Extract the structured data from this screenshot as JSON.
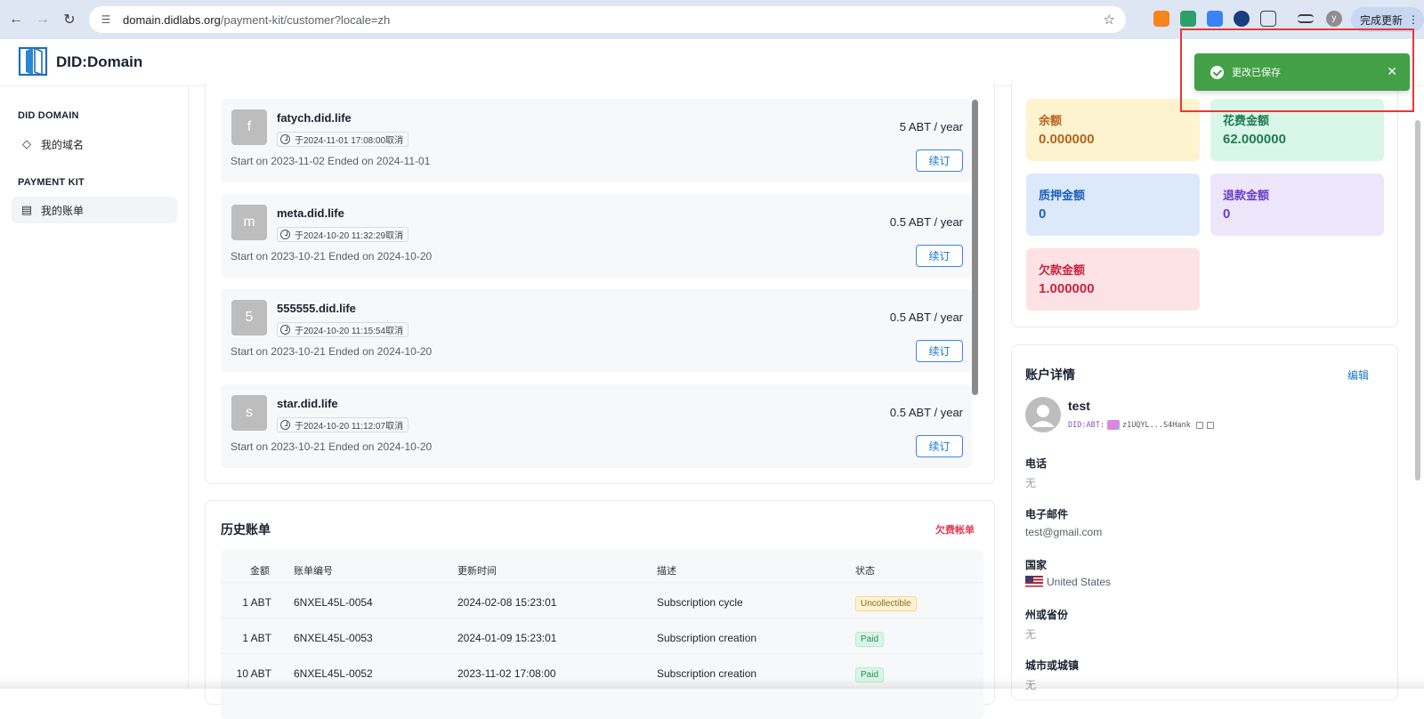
{
  "browser": {
    "url_host": "domain.didlabs.org",
    "url_path": "/payment-kit/customer?locale=zh",
    "update_label": "完成更新",
    "profile_initial": "y"
  },
  "app": {
    "brand": "DID:Domain"
  },
  "sidebar": {
    "sections": [
      {
        "title": "DID DOMAIN",
        "items": [
          {
            "label": "我的域名",
            "icon": "diamond-icon"
          }
        ]
      },
      {
        "title": "PAYMENT KIT",
        "items": [
          {
            "label": "我的账单",
            "icon": "receipt-icon"
          }
        ]
      }
    ]
  },
  "subscriptions": [
    {
      "initial": "f",
      "name": "fatych.did.life",
      "cancel_note": "于2024-11-01 17:08:00取消",
      "period": "Start on 2023-11-02 Ended on 2024-11-01",
      "price": "5 ABT / year",
      "renew_label": "续订"
    },
    {
      "initial": "m",
      "name": "meta.did.life",
      "cancel_note": "于2024-10-20 11:32:29取消",
      "period": "Start on 2023-10-21 Ended on 2024-10-20",
      "price": "0.5 ABT / year",
      "renew_label": "续订"
    },
    {
      "initial": "5",
      "name": "555555.did.life",
      "cancel_note": "于2024-10-20 11:15:54取消",
      "period": "Start on 2023-10-21 Ended on 2024-10-20",
      "price": "0.5 ABT / year",
      "renew_label": "续订"
    },
    {
      "initial": "s",
      "name": "star.did.life",
      "cancel_note": "于2024-10-20 11:12:07取消",
      "period": "Start on 2023-10-21 Ended on 2024-10-20",
      "price": "0.5 ABT / year",
      "renew_label": "续订"
    }
  ],
  "history": {
    "title": "历史账单",
    "overdue_link": "欠费帐单",
    "columns": [
      "金额",
      "账单编号",
      "更新时间",
      "描述",
      "状态"
    ],
    "rows": [
      {
        "amount": "1 ABT",
        "number": "6NXEL45L-0054",
        "updated": "2024-02-08 15:23:01",
        "desc": "Subscription cycle",
        "status": "Uncollectible",
        "status_kind": "warn"
      },
      {
        "amount": "1 ABT",
        "number": "6NXEL45L-0053",
        "updated": "2024-01-09 15:23:01",
        "desc": "Subscription creation",
        "status": "Paid",
        "status_kind": "ok"
      },
      {
        "amount": "10 ABT",
        "number": "6NXEL45L-0052",
        "updated": "2023-11-02 17:08:00",
        "desc": "Subscription creation",
        "status": "Paid",
        "status_kind": "ok"
      }
    ]
  },
  "summary": {
    "stats": [
      {
        "label": "余额",
        "value": "0.000000",
        "bg": "#fdf3cf",
        "color": "#b4631d"
      },
      {
        "label": "花费金额",
        "value": "62.000000",
        "bg": "#d9f7e8",
        "color": "#1f7a53"
      },
      {
        "label": "质押金额",
        "value": "0",
        "bg": "#dce9fb",
        "color": "#1f5fbf"
      },
      {
        "label": "退款金额",
        "value": "0",
        "bg": "#ede6fb",
        "color": "#6a3ccc"
      },
      {
        "label": "欠款金额",
        "value": "1.000000",
        "bg": "#fde2e5",
        "color": "#c8243f"
      }
    ]
  },
  "account": {
    "title": "账户详情",
    "edit_label": "编辑",
    "user_name": "test",
    "did_prefix": "DID:ABT:",
    "did_value": "z1UQYL...S4Hank",
    "fields": [
      {
        "label": "电话",
        "value": "无",
        "muted": true
      },
      {
        "label": "电子邮件",
        "value": "test@gmail.com",
        "muted": false
      },
      {
        "label": "国家",
        "value": "United States",
        "muted": false,
        "flag": "us-flag-icon"
      },
      {
        "label": "州或省份",
        "value": "无",
        "muted": true
      },
      {
        "label": "城市或城镇",
        "value": "无",
        "muted": true
      }
    ]
  },
  "toast": {
    "message": "更改已保存",
    "icon": "check-circle-icon",
    "color": "#43a047"
  }
}
